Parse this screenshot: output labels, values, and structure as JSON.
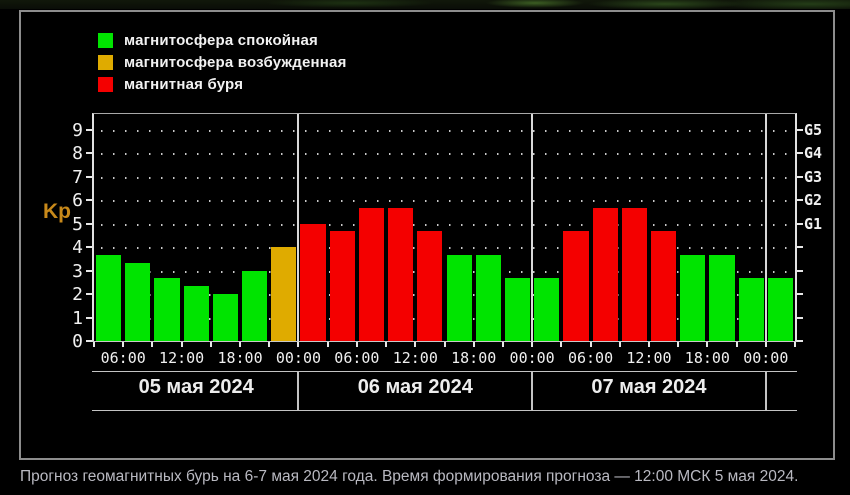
{
  "colors": {
    "quiet": "#00e400",
    "unsettled": "#dfab00",
    "storm": "#f40000",
    "axis": "#e6e6e6",
    "grid_dot": "#e8e8e8",
    "kp_label": "#c8891a",
    "text": "#f0f0f0",
    "caption_text": "#b9b9c1",
    "panel_border": "#8d8d8d"
  },
  "legend": {
    "items": [
      {
        "label": "магнитосфера спокойная",
        "status": "quiet"
      },
      {
        "label": "магнитосфера возбужденная",
        "status": "unsettled"
      },
      {
        "label": "магнитная буря",
        "status": "storm"
      }
    ]
  },
  "axis": {
    "kp_label": "Kp"
  },
  "chart_data": {
    "type": "bar",
    "ylabel": "Kp",
    "ylim": [
      0,
      9.65
    ],
    "yticks": [
      0,
      1,
      2,
      3,
      4,
      5,
      6,
      7,
      8,
      9
    ],
    "grid": "dotted horizontal line at each integer Kp",
    "legend_position": "top-left",
    "right_scale": [
      {
        "label": "G1",
        "kp": 5
      },
      {
        "label": "G2",
        "kp": 6
      },
      {
        "label": "G3",
        "kp": 7
      },
      {
        "label": "G4",
        "kp": 8
      },
      {
        "label": "G5",
        "kp": 9
      }
    ],
    "days": [
      {
        "date": "05 мая 2024",
        "x_tick_labels": [
          "06:00",
          "12:00",
          "18:00",
          "00:00"
        ],
        "x_tick_boundaries": [
          1,
          3,
          5,
          7
        ],
        "bars": [
          {
            "kp": 3.67,
            "status": "quiet"
          },
          {
            "kp": 3.33,
            "status": "quiet"
          },
          {
            "kp": 2.67,
            "status": "quiet"
          },
          {
            "kp": 2.33,
            "status": "quiet"
          },
          {
            "kp": 2.0,
            "status": "quiet"
          },
          {
            "kp": 3.0,
            "status": "quiet"
          },
          {
            "kp": 4.0,
            "status": "unsettled"
          }
        ]
      },
      {
        "date": "06 мая 2024",
        "x_tick_labels": [
          "06:00",
          "12:00",
          "18:00",
          "00:00"
        ],
        "x_tick_boundaries": [
          2,
          4,
          6,
          8
        ],
        "bars": [
          {
            "kp": 5.0,
            "status": "storm"
          },
          {
            "kp": 4.67,
            "status": "storm"
          },
          {
            "kp": 5.67,
            "status": "storm"
          },
          {
            "kp": 5.67,
            "status": "storm"
          },
          {
            "kp": 4.67,
            "status": "storm"
          },
          {
            "kp": 3.67,
            "status": "quiet"
          },
          {
            "kp": 3.67,
            "status": "quiet"
          },
          {
            "kp": 2.67,
            "status": "quiet"
          }
        ]
      },
      {
        "date": "07 мая 2024",
        "x_tick_labels": [
          "06:00",
          "12:00",
          "18:00",
          "00:00"
        ],
        "x_tick_boundaries": [
          2,
          4,
          6,
          8
        ],
        "bars": [
          {
            "kp": 2.67,
            "status": "quiet"
          },
          {
            "kp": 4.67,
            "status": "storm"
          },
          {
            "kp": 5.67,
            "status": "storm"
          },
          {
            "kp": 5.67,
            "status": "storm"
          },
          {
            "kp": 4.67,
            "status": "storm"
          },
          {
            "kp": 3.67,
            "status": "quiet"
          },
          {
            "kp": 3.67,
            "status": "quiet"
          },
          {
            "kp": 2.67,
            "status": "quiet"
          }
        ]
      },
      {
        "date": "",
        "x_tick_labels": [],
        "x_tick_boundaries": [],
        "bars": [
          {
            "kp": 2.67,
            "status": "quiet"
          }
        ]
      }
    ]
  },
  "caption": "Прогноз геомагнитных бурь на 6-7 мая 2024 года. Время формирования прогноза — 12:00 МСК 5 мая 2024."
}
